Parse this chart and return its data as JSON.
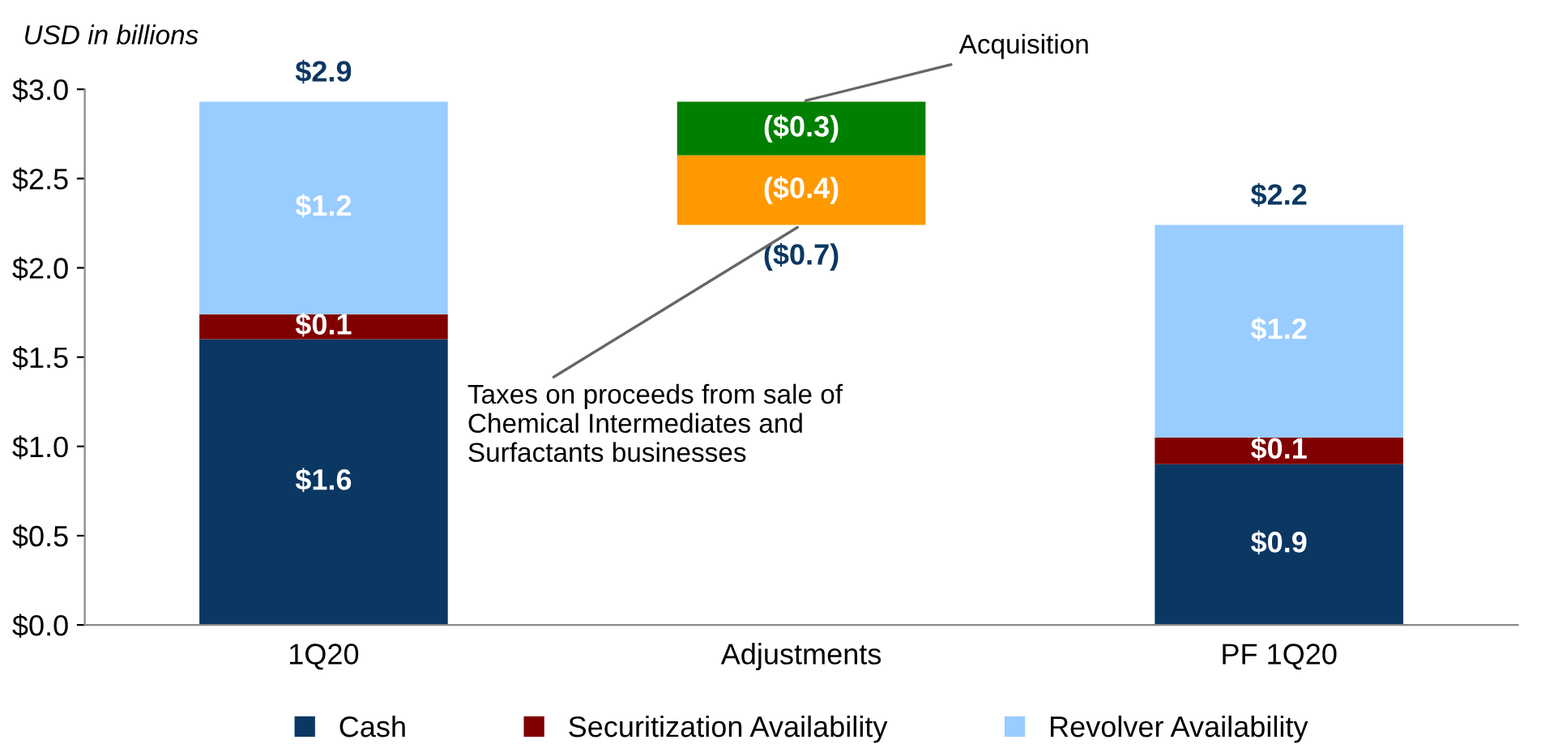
{
  "chart_data": {
    "type": "bar",
    "stacked": true,
    "ylabel": "USD in billions",
    "categories": [
      "1Q20",
      "Adjustments",
      "PF 1Q20"
    ],
    "series": [
      {
        "name": "Cash",
        "color": "#0b3763",
        "values": [
          1.6,
          null,
          0.9
        ],
        "value_labels": [
          "$1.6",
          null,
          "$0.9"
        ]
      },
      {
        "name": "Securitization Availability",
        "color": "#800000",
        "values": [
          0.14,
          null,
          0.15
        ],
        "value_labels": [
          "$0.1",
          null,
          "$0.1"
        ]
      },
      {
        "name": "Revolver Availability",
        "color": "#99ccff",
        "values": [
          1.19,
          null,
          1.19
        ],
        "value_labels": [
          "$1.2",
          null,
          "$1.2"
        ]
      },
      {
        "color": "#008000",
        "base": [
          null,
          2.93,
          null
        ],
        "values": [
          null,
          -0.3,
          null
        ],
        "value_labels": [
          null,
          "($0.3)",
          null
        ]
      },
      {
        "color": "#ff9900",
        "base": [
          null,
          2.63,
          null
        ],
        "values": [
          null,
          -0.39,
          null
        ],
        "value_labels": [
          null,
          "($0.4)",
          null
        ]
      }
    ],
    "totals": [
      "$2.9",
      "($0.7)",
      "$2.2"
    ],
    "ylim": [
      0,
      3.0
    ],
    "yticks": [
      {
        "value": 0,
        "label": "$0.0"
      },
      {
        "value": 0.5,
        "label": "$0.5"
      },
      {
        "value": 1.0,
        "label": "$1.0"
      },
      {
        "value": 1.5,
        "label": "$1.5"
      },
      {
        "value": 2.0,
        "label": "$2.0"
      },
      {
        "value": 2.5,
        "label": "$2.5"
      },
      {
        "value": 3.0,
        "label": "$3.0"
      }
    ],
    "annotations": [
      {
        "text": "Acquisition",
        "x": "Adjustments",
        "y": 2.93
      },
      {
        "text": "Taxes on proceeds from sale of\nChemical Intermediates and\nSurfactants businesses",
        "x": "Adjustments",
        "y": 2.24
      }
    ],
    "legend": "bottom",
    "grid": false
  }
}
